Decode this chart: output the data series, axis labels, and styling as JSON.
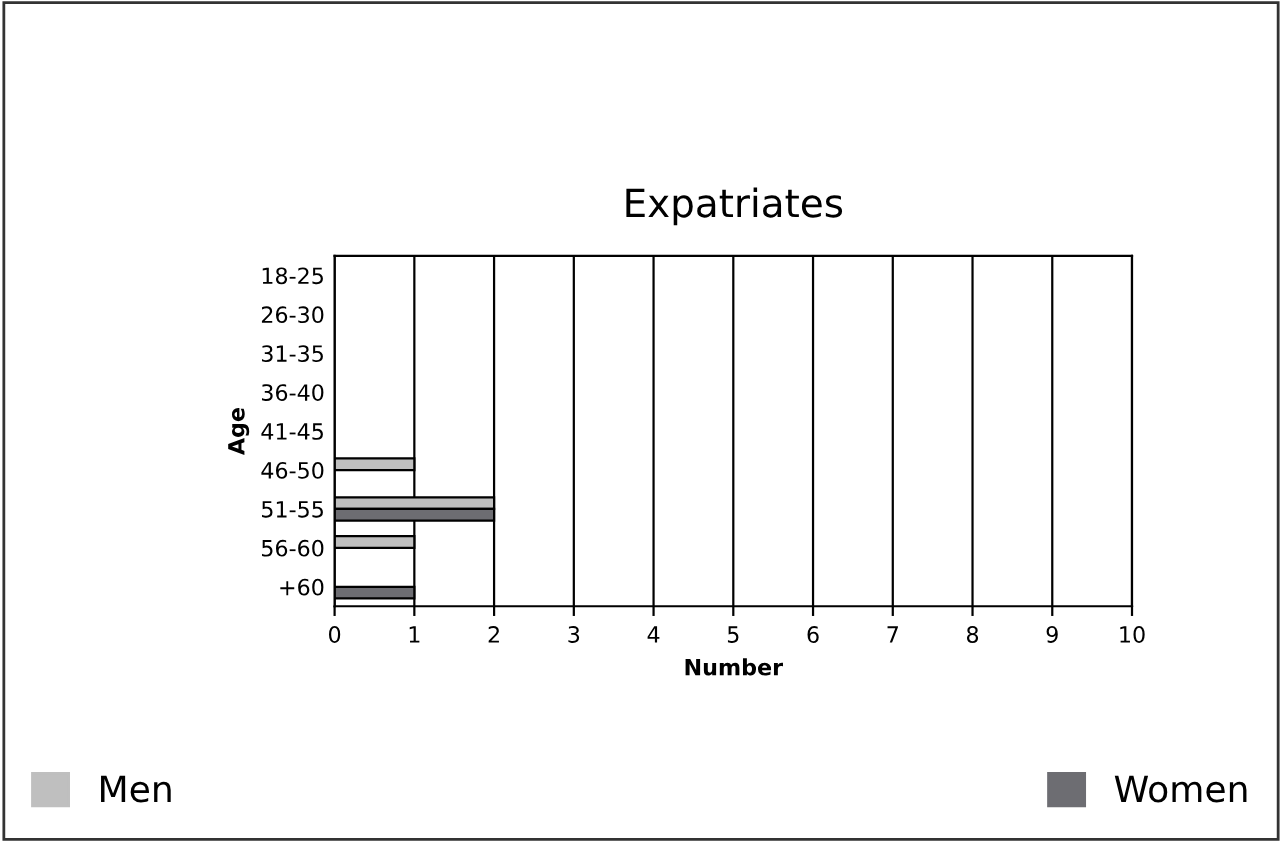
{
  "chart_data": {
    "type": "bar",
    "orientation": "horizontal",
    "title": "Expatriates",
    "xlabel": "Number",
    "ylabel": "Age",
    "categories": [
      "18-25",
      "26-30",
      "31-35",
      "36-40",
      "41-45",
      "46-50",
      "51-55",
      "56-60",
      "+60"
    ],
    "series": [
      {
        "name": "Men",
        "color": "#bfbfbf",
        "values": [
          0,
          0,
          0,
          0,
          0,
          1,
          2,
          1,
          0
        ]
      },
      {
        "name": "Women",
        "color": "#6d6d72",
        "values": [
          0,
          0,
          0,
          0,
          0,
          0,
          2,
          0,
          1
        ]
      }
    ],
    "xlim": [
      0,
      10
    ],
    "xticks": [
      0,
      1,
      2,
      3,
      4,
      5,
      6,
      7,
      8,
      9,
      10
    ],
    "grid": "x",
    "legend": "bottom"
  }
}
